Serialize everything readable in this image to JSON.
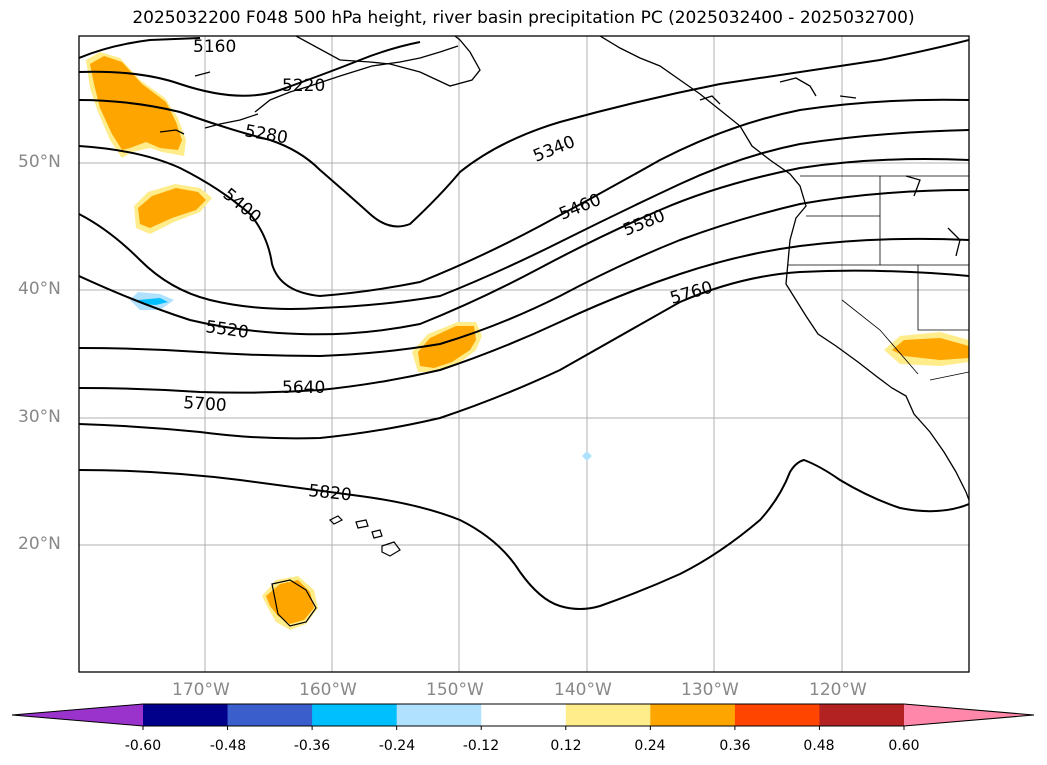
{
  "title": "2025032200 F048 500 hPa height, river basin precipitation PC (2025032400 - 2025032700)",
  "latitude_labels": [
    "50°N",
    "40°N",
    "30°N",
    "20°N"
  ],
  "longitude_labels": [
    "170°W",
    "160°W",
    "150°W",
    "140°W",
    "130°W",
    "120°W"
  ],
  "contour_labels": [
    "5160",
    "5220",
    "5280",
    "5340",
    "5400",
    "5460",
    "5520",
    "5580",
    "5640",
    "5700",
    "5760",
    "5820"
  ],
  "colorbar": {
    "tick_labels": [
      "-0.60",
      "-0.48",
      "-0.36",
      "-0.24",
      "-0.12",
      "0.12",
      "0.24",
      "0.36",
      "0.48",
      "0.60"
    ],
    "colors": [
      "#9933cc",
      "#00008b",
      "#3a5fcd",
      "#00bfff",
      "#b0e2ff",
      "#ffffff",
      "#ffec8b",
      "#ffa500",
      "#ff4500",
      "#b22222",
      "#ff88aa"
    ]
  }
}
